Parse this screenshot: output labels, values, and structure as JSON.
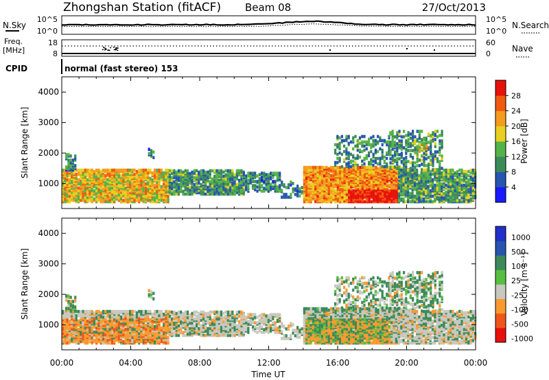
{
  "header": {
    "title": "Zhongshan Station (fitACF)",
    "beam": "Beam 08",
    "date": "27/Oct/2013"
  },
  "noise_panel": {
    "left_label": "N.Sky",
    "left_tick_top": "10^5",
    "left_tick_bottom": "10^0",
    "right_label": "N.Search",
    "right_tick_top": "10^5",
    "right_tick_bottom": "10^0"
  },
  "freq_panel": {
    "left_label_1": "Freq.",
    "left_label_2": "[MHz]",
    "left_tick_top": "18",
    "left_tick_bottom": "8",
    "right_label": "Nave",
    "right_tick_top": "60",
    "right_tick_bottom": "0"
  },
  "cpid": {
    "label": "CPID",
    "text": "normal (fast stereo) 153"
  },
  "colors": {
    "power": [
      "#1a1aff",
      "#2755b0",
      "#3c8a5a",
      "#53b348",
      "#e8d020",
      "#f59b1e",
      "#f05a10",
      "#e8100a"
    ],
    "velocity": [
      "#e8100a",
      "#f0561a",
      "#f89a2e",
      "#c8c8c0",
      "#58c040",
      "#3c8a5a",
      "#2755b0",
      "#2030c8"
    ]
  },
  "chart_data": [
    {
      "type": "heatmap",
      "name": "power",
      "xlabel": "",
      "ylabel": "Slant Range [km]",
      "xlim": [
        0,
        24
      ],
      "ylim": [
        180,
        4500
      ],
      "yticks": [
        "1000",
        "2000",
        "3000",
        "4000"
      ],
      "colorbar": {
        "label": "Power [dB]",
        "ticks": [
          "4",
          "8",
          "12",
          "16",
          "20",
          "24",
          "28"
        ],
        "range": [
          0,
          30
        ]
      }
    },
    {
      "type": "heatmap",
      "name": "velocity",
      "xlabel": "Time UT",
      "ylabel": "Slant Range [km]",
      "xlim": [
        0,
        24
      ],
      "ylim": [
        180,
        4500
      ],
      "xticks": [
        "00:00",
        "04:00",
        "08:00",
        "12:00",
        "16:00",
        "20:00",
        "00:00"
      ],
      "yticks": [
        "1000",
        "2000",
        "3000",
        "4000"
      ],
      "colorbar": {
        "label": "Velocity [m s⁻¹]",
        "ticks": [
          "1000",
          "500",
          "100",
          "25",
          "-25",
          "-100",
          "-500",
          "-1000"
        ]
      }
    }
  ]
}
